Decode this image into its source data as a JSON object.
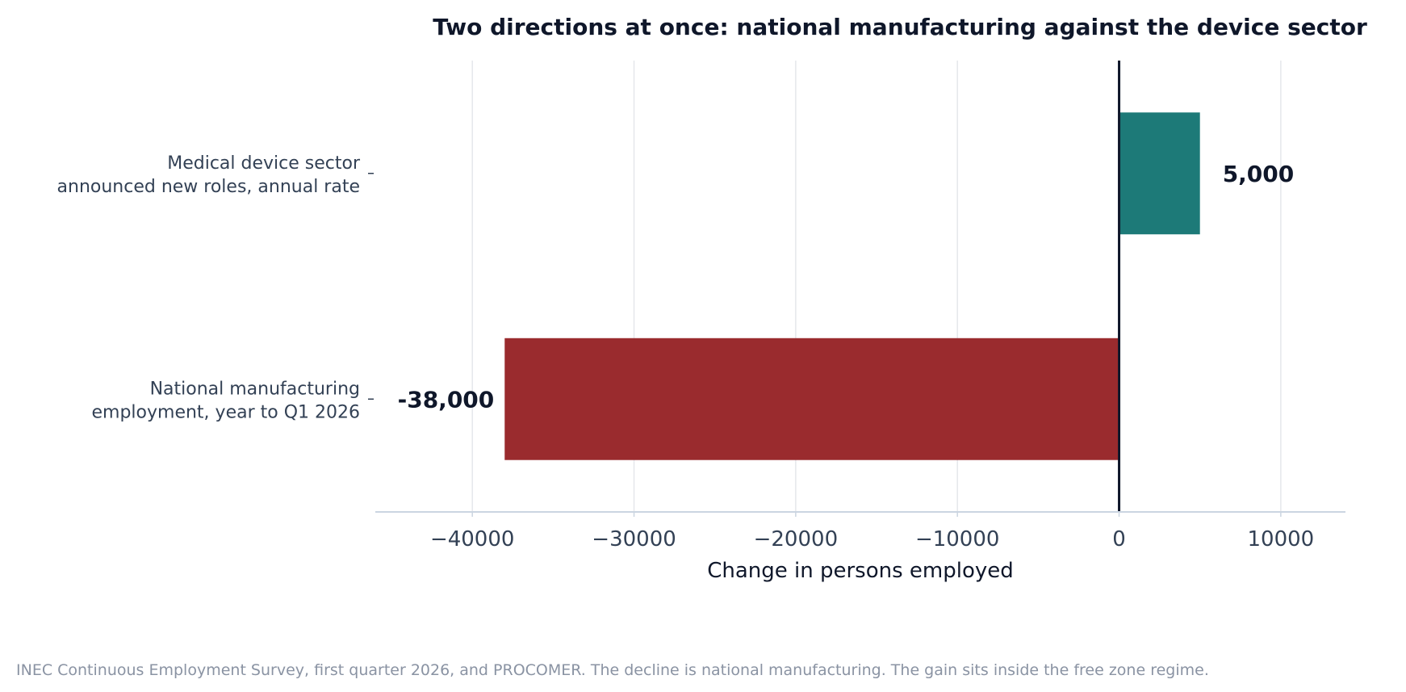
{
  "chart_data": {
    "type": "bar",
    "orientation": "horizontal",
    "title": "Two directions at once: national manufacturing against the device sector",
    "xlabel": "Change in persons employed",
    "ylabel": "",
    "xlim": [
      -46000,
      14000
    ],
    "xticks": [
      -40000,
      -30000,
      -20000,
      -10000,
      0,
      10000
    ],
    "xtick_labels": [
      "−40000",
      "−30000",
      "−20000",
      "−10000",
      "0",
      "10000"
    ],
    "grid": "vertical",
    "bars": [
      {
        "label_lines": [
          "Medical device sector",
          "announced new roles, annual rate"
        ],
        "value": 5000,
        "value_label": "5,000",
        "color": "#1d7a78"
      },
      {
        "label_lines": [
          "National manufacturing",
          "employment, year to Q1 2026"
        ],
        "value": -38000,
        "value_label": "-38,000",
        "color": "#9a2b2e"
      }
    ]
  },
  "source_note": "INEC Continuous Employment Survey, first quarter 2026, and PROCOMER. The decline is national manufacturing. The gain sits inside the free zone regime."
}
